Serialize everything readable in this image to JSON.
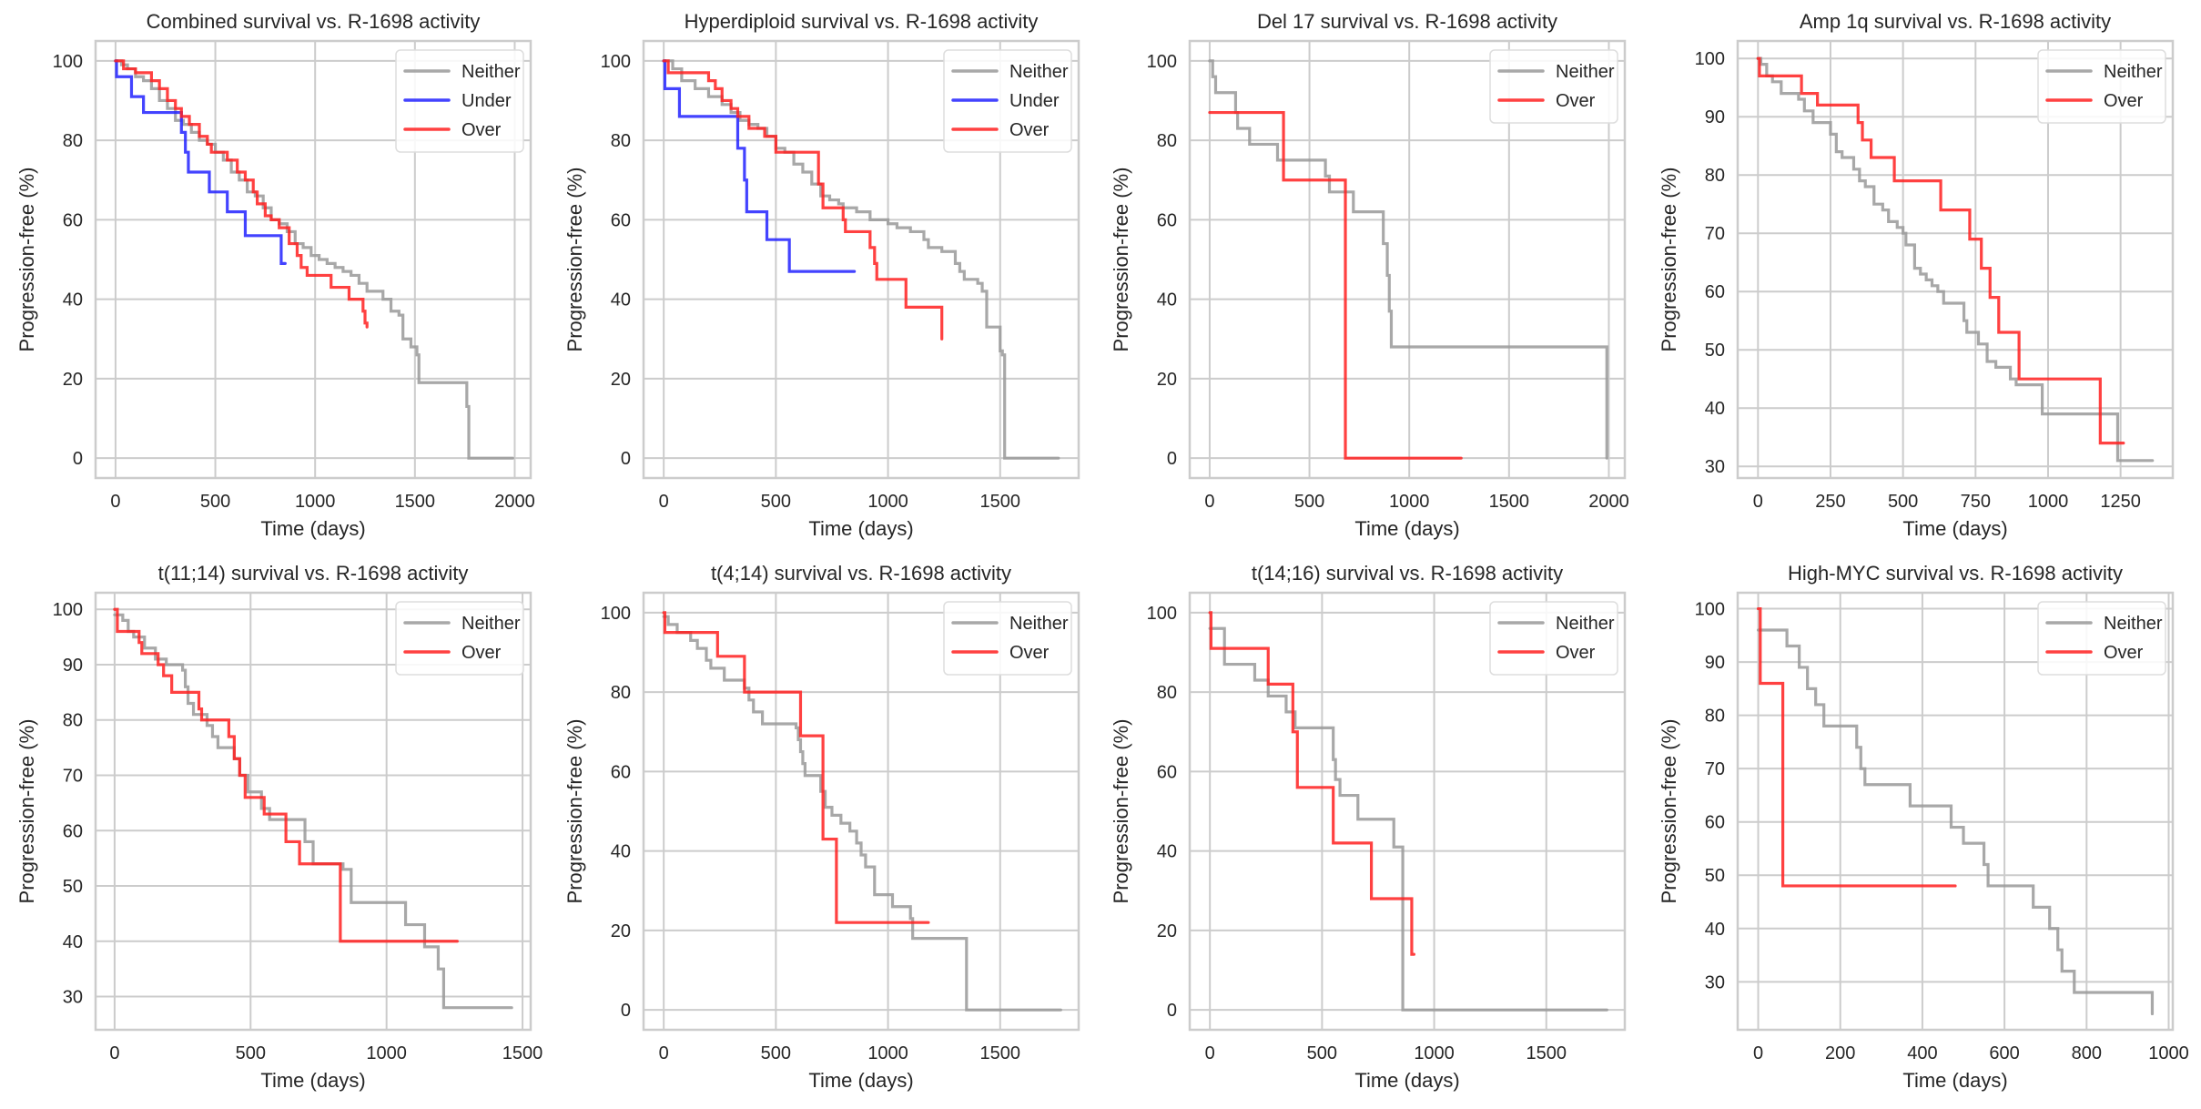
{
  "chart_data": [
    {
      "type": "line",
      "step": true,
      "title": "Combined survival vs. R-1698 activity",
      "xlabel": "Time (days)",
      "ylabel": "Progression-free (%)",
      "xlim": [
        -100,
        2080
      ],
      "ylim": [
        -5,
        105
      ],
      "xticks": [
        0,
        500,
        1000,
        1500,
        2000
      ],
      "yticks": [
        0,
        20,
        40,
        60,
        80,
        100
      ],
      "grid": true,
      "legend": "top-right",
      "series": [
        {
          "name": "Neither",
          "color": "#999999",
          "x": [
            0,
            30,
            60,
            100,
            140,
            180,
            220,
            260,
            300,
            340,
            380,
            420,
            460,
            500,
            540,
            580,
            620,
            660,
            700,
            740,
            780,
            820,
            860,
            900,
            940,
            980,
            1020,
            1060,
            1100,
            1140,
            1180,
            1220,
            1260,
            1300,
            1340,
            1380,
            1420,
            1440,
            1480,
            1510,
            1520,
            1760,
            1770,
            1990
          ],
          "y": [
            100,
            99,
            98,
            96,
            95,
            93,
            90,
            88,
            85,
            84,
            82,
            80,
            79,
            77,
            75,
            72,
            70,
            67,
            66,
            63,
            60,
            59,
            57,
            54,
            53,
            51,
            50,
            49,
            48,
            47,
            46,
            44,
            42,
            42,
            40,
            37,
            36,
            30,
            28,
            26,
            19,
            13,
            0,
            0
          ]
        },
        {
          "name": "Under",
          "color": "#2222ff",
          "x": [
            0,
            5,
            80,
            140,
            330,
            350,
            365,
            470,
            560,
            650,
            830,
            850
          ],
          "y": [
            100,
            96,
            91,
            87,
            82,
            77,
            72,
            67,
            62,
            56,
            49,
            49
          ]
        },
        {
          "name": "Over",
          "color": "#ff2020",
          "x": [
            0,
            40,
            100,
            150,
            180,
            220,
            260,
            300,
            330,
            370,
            420,
            460,
            480,
            510,
            560,
            610,
            650,
            690,
            710,
            750,
            780,
            820,
            870,
            910,
            930,
            960,
            1030,
            1080,
            1170,
            1240,
            1250,
            1260
          ],
          "y": [
            100,
            98,
            97,
            97,
            95,
            93,
            90,
            88,
            86,
            84,
            81,
            79,
            77,
            77,
            75,
            72,
            70,
            67,
            64,
            61,
            60,
            58,
            54,
            51,
            48,
            46,
            46,
            43,
            40,
            37,
            34,
            33
          ]
        }
      ]
    },
    {
      "type": "line",
      "step": true,
      "title": "Hyperdiploid survival vs. R-1698 activity",
      "xlabel": "Time (days)",
      "ylabel": "Progression-free (%)",
      "xlim": [
        -90,
        1850
      ],
      "ylim": [
        -5,
        105
      ],
      "xticks": [
        0,
        500,
        1000,
        1500
      ],
      "yticks": [
        0,
        20,
        40,
        60,
        80,
        100
      ],
      "grid": true,
      "legend": "top-right",
      "series": [
        {
          "name": "Neither",
          "color": "#999999",
          "x": [
            0,
            40,
            80,
            140,
            200,
            260,
            300,
            340,
            380,
            420,
            460,
            500,
            540,
            580,
            620,
            660,
            700,
            740,
            780,
            800,
            860,
            920,
            1000,
            1040,
            1100,
            1160,
            1180,
            1240,
            1300,
            1320,
            1340,
            1400,
            1420,
            1440,
            1500,
            1510,
            1520,
            1760
          ],
          "y": [
            100,
            98,
            95,
            93,
            91,
            89,
            87,
            85,
            84,
            83,
            81,
            78,
            77,
            74,
            72,
            69,
            66,
            65,
            64,
            63,
            62,
            60,
            59,
            58,
            57,
            55,
            53,
            52,
            49,
            47,
            45,
            44,
            42,
            33,
            27,
            26,
            0,
            0
          ]
        },
        {
          "name": "Under",
          "color": "#2222ff",
          "x": [
            0,
            5,
            70,
            330,
            360,
            370,
            460,
            560,
            850
          ],
          "y": [
            100,
            93,
            86,
            78,
            70,
            62,
            55,
            47,
            47
          ]
        },
        {
          "name": "Over",
          "color": "#ff2020",
          "x": [
            0,
            20,
            200,
            230,
            260,
            300,
            330,
            380,
            450,
            500,
            590,
            690,
            710,
            800,
            810,
            920,
            940,
            950,
            1080,
            1240
          ],
          "y": [
            100,
            97,
            95,
            93,
            90,
            88,
            86,
            83,
            81,
            77,
            77,
            69,
            63,
            60,
            57,
            53,
            49,
            45,
            38,
            30
          ]
        }
      ]
    },
    {
      "type": "line",
      "step": true,
      "title": "Del 17 survival vs. R-1698 activity",
      "xlabel": "Time (days)",
      "ylabel": "Progression-free (%)",
      "xlim": [
        -100,
        2080
      ],
      "ylim": [
        -5,
        105
      ],
      "xticks": [
        0,
        500,
        1000,
        1500,
        2000
      ],
      "yticks": [
        0,
        20,
        40,
        60,
        80,
        100
      ],
      "grid": true,
      "legend": "top-right",
      "series": [
        {
          "name": "Neither",
          "color": "#999999",
          "x": [
            0,
            15,
            30,
            130,
            140,
            200,
            340,
            580,
            600,
            720,
            870,
            890,
            900,
            910,
            1990
          ],
          "y": [
            100,
            96,
            92,
            87,
            83,
            79,
            75,
            71,
            67,
            62,
            54,
            46,
            37,
            28,
            0
          ]
        },
        {
          "name": "Over",
          "color": "#ff2020",
          "x": [
            0,
            370,
            680,
            1260
          ],
          "y": [
            87,
            70,
            0,
            0
          ]
        }
      ]
    },
    {
      "type": "line",
      "step": true,
      "title": "Amp 1q survival vs. R-1698 activity",
      "xlabel": "Time (days)",
      "ylabel": "Progression-free (%)",
      "xlim": [
        -70,
        1430
      ],
      "ylim": [
        28,
        103
      ],
      "xticks": [
        0,
        250,
        500,
        750,
        1000,
        1250
      ],
      "yticks": [
        30,
        40,
        50,
        60,
        70,
        80,
        90,
        100
      ],
      "grid": true,
      "legend": "top-right",
      "series": [
        {
          "name": "Neither",
          "color": "#999999",
          "x": [
            0,
            10,
            30,
            50,
            80,
            140,
            160,
            190,
            250,
            270,
            290,
            330,
            350,
            370,
            400,
            430,
            450,
            480,
            500,
            510,
            540,
            560,
            580,
            600,
            620,
            640,
            710,
            720,
            760,
            790,
            820,
            870,
            890,
            980,
            1240,
            1360
          ],
          "y": [
            100,
            99,
            97,
            96,
            94,
            93,
            91,
            89,
            87,
            84,
            83,
            81,
            79,
            78,
            75,
            74,
            72,
            71,
            70,
            68,
            64,
            63,
            62,
            61,
            60,
            58,
            55,
            53,
            51,
            48,
            47,
            45,
            44,
            39,
            31,
            31
          ]
        },
        {
          "name": "Over",
          "color": "#ff2020",
          "x": [
            0,
            5,
            150,
            205,
            345,
            360,
            390,
            470,
            630,
            730,
            770,
            800,
            830,
            900,
            1180,
            1260
          ],
          "y": [
            100,
            97,
            94,
            92,
            89,
            86,
            83,
            79,
            74,
            69,
            64,
            59,
            53,
            45,
            34,
            34
          ]
        }
      ]
    },
    {
      "type": "line",
      "step": true,
      "title": "t(11;14) survival vs. R-1698 activity",
      "xlabel": "Time (days)",
      "ylabel": "Progression-free (%)",
      "xlim": [
        -70,
        1530
      ],
      "ylim": [
        24,
        103
      ],
      "xticks": [
        0,
        500,
        1000,
        1500
      ],
      "yticks": [
        30,
        40,
        50,
        60,
        70,
        80,
        90,
        100
      ],
      "grid": true,
      "legend": "top-right",
      "series": [
        {
          "name": "Neither",
          "color": "#999999",
          "x": [
            0,
            30,
            50,
            70,
            110,
            150,
            190,
            250,
            260,
            270,
            290,
            340,
            360,
            380,
            440,
            460,
            490,
            540,
            570,
            700,
            730,
            840,
            870,
            1070,
            1140,
            1190,
            1210,
            1460
          ],
          "y": [
            99,
            98,
            96,
            95,
            93,
            91,
            90,
            89,
            86,
            83,
            81,
            79,
            77,
            75,
            73,
            70,
            67,
            64,
            62,
            58,
            54,
            53,
            47,
            43,
            39,
            35,
            28,
            28
          ]
        },
        {
          "name": "Over",
          "color": "#ff2020",
          "x": [
            0,
            10,
            90,
            100,
            160,
            180,
            210,
            310,
            320,
            420,
            440,
            460,
            480,
            550,
            630,
            680,
            830,
            1260
          ],
          "y": [
            100,
            96,
            94,
            92,
            90,
            88,
            85,
            82,
            80,
            77,
            73,
            70,
            66,
            63,
            58,
            54,
            40,
            40
          ]
        }
      ]
    },
    {
      "type": "line",
      "step": true,
      "title": "t(4;14) survival vs. R-1698 activity",
      "xlabel": "Time (days)",
      "ylabel": "Progression-free (%)",
      "xlim": [
        -90,
        1850
      ],
      "ylim": [
        -5,
        105
      ],
      "xticks": [
        0,
        500,
        1000,
        1500
      ],
      "yticks": [
        0,
        20,
        40,
        60,
        80,
        100
      ],
      "grid": true,
      "legend": "top-right",
      "series": [
        {
          "name": "Neither",
          "color": "#999999",
          "x": [
            0,
            20,
            60,
            120,
            150,
            190,
            210,
            270,
            360,
            380,
            400,
            440,
            590,
            600,
            610,
            620,
            630,
            700,
            720,
            750,
            790,
            830,
            860,
            880,
            900,
            940,
            1020,
            1100,
            1110,
            1350,
            1770
          ],
          "y": [
            99,
            97,
            95,
            93,
            91,
            88,
            86,
            83,
            81,
            78,
            75,
            72,
            71,
            68,
            65,
            62,
            59,
            55,
            51,
            49,
            47,
            45,
            42,
            39,
            36,
            29,
            26,
            23,
            18,
            0,
            0
          ]
        },
        {
          "name": "Over",
          "color": "#ff2020",
          "x": [
            0,
            5,
            240,
            360,
            610,
            710,
            770,
            1180
          ],
          "y": [
            100,
            95,
            89,
            80,
            69,
            43,
            22,
            22
          ]
        }
      ]
    },
    {
      "type": "line",
      "step": true,
      "title": "t(14;16) survival vs. R-1698 activity",
      "xlabel": "Time (days)",
      "ylabel": "Progression-free (%)",
      "xlim": [
        -90,
        1850
      ],
      "ylim": [
        -5,
        105
      ],
      "xticks": [
        0,
        500,
        1000,
        1500
      ],
      "yticks": [
        0,
        20,
        40,
        60,
        80,
        100
      ],
      "grid": true,
      "legend": "top-right",
      "series": [
        {
          "name": "Neither",
          "color": "#999999",
          "x": [
            0,
            55,
            65,
            200,
            260,
            340,
            380,
            550,
            560,
            580,
            660,
            820,
            860,
            1770
          ],
          "y": [
            96,
            96,
            87,
            83,
            79,
            75,
            71,
            63,
            58,
            54,
            48,
            41,
            0,
            0
          ]
        },
        {
          "name": "Over",
          "color": "#ff2020",
          "x": [
            0,
            5,
            260,
            370,
            390,
            550,
            720,
            900,
            910
          ],
          "y": [
            100,
            91,
            82,
            70,
            56,
            42,
            28,
            14,
            14
          ]
        }
      ]
    },
    {
      "type": "line",
      "step": true,
      "title": "High-MYC survival vs. R-1698 activity",
      "xlabel": "Time (days)",
      "ylabel": "Progression-free (%)",
      "xlim": [
        -50,
        1010
      ],
      "ylim": [
        21,
        103
      ],
      "xticks": [
        0,
        200,
        400,
        600,
        800,
        1000
      ],
      "yticks": [
        30,
        40,
        50,
        60,
        70,
        80,
        90,
        100
      ],
      "grid": true,
      "legend": "top-right",
      "series": [
        {
          "name": "Neither",
          "color": "#999999",
          "x": [
            0,
            70,
            100,
            120,
            140,
            160,
            240,
            250,
            260,
            370,
            470,
            500,
            550,
            560,
            670,
            710,
            730,
            740,
            770,
            960
          ],
          "y": [
            96,
            93,
            89,
            85,
            82,
            78,
            74,
            70,
            67,
            63,
            59,
            56,
            52,
            48,
            44,
            40,
            36,
            32,
            28,
            24
          ]
        },
        {
          "name": "Over",
          "color": "#ff2020",
          "x": [
            0,
            5,
            60,
            480
          ],
          "y": [
            100,
            86,
            48,
            48
          ]
        }
      ]
    }
  ]
}
